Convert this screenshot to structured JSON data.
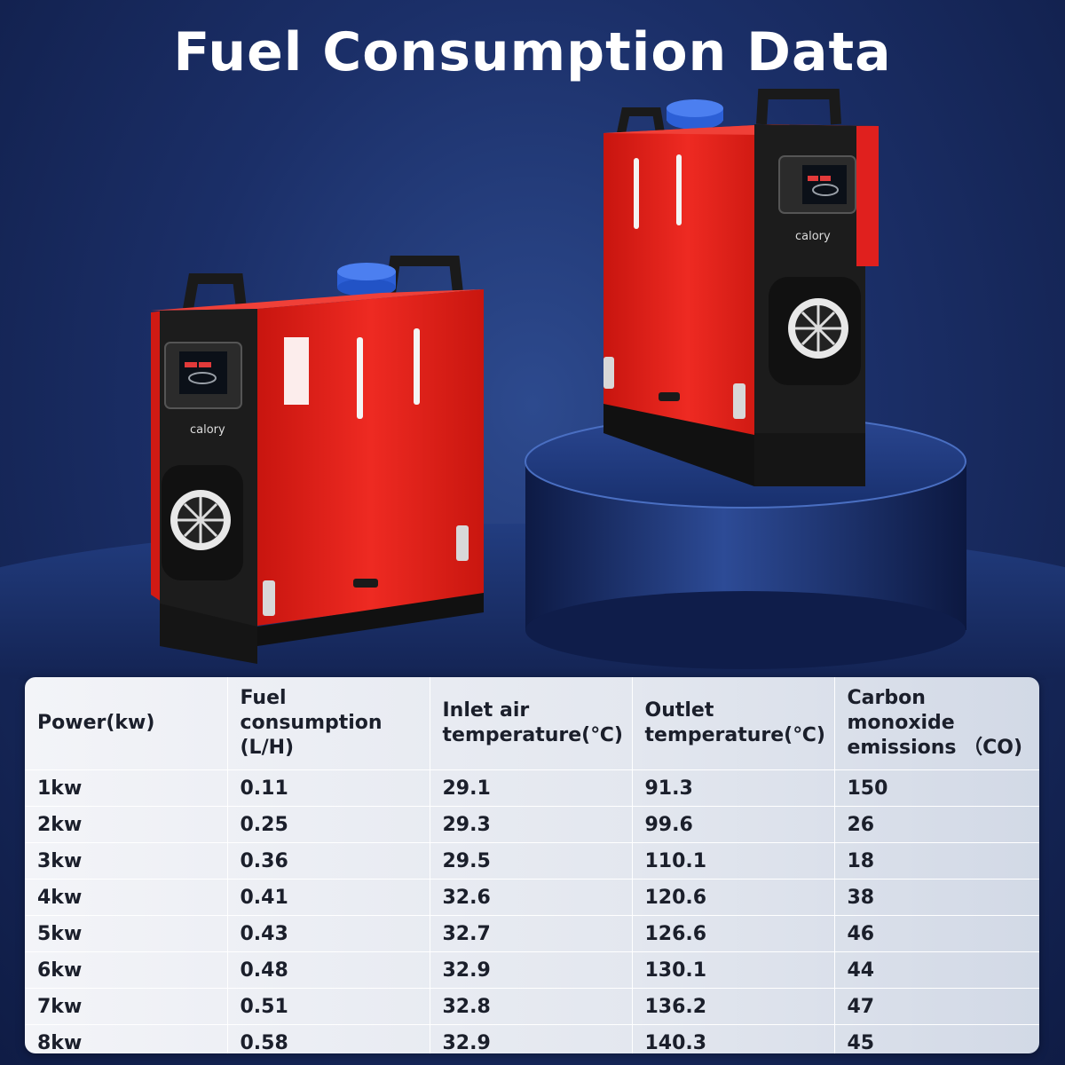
{
  "title": "Fuel Consumption Data",
  "brand": "calory",
  "colors": {
    "heater_red": "#e0201e",
    "lid_blue": "#2c5fd6",
    "background": "#1b2f68"
  },
  "table": {
    "headers": [
      "Power(kw)",
      "Fuel consumption (L/H)",
      "Inlet air temperature(℃)",
      "Outlet temperature(℃)",
      "Carbon monoxide emissions （CO)"
    ],
    "rows": [
      [
        "1kw",
        "0.11",
        "29.1",
        "91.3",
        "150"
      ],
      [
        "2kw",
        "0.25",
        "29.3",
        "99.6",
        "26"
      ],
      [
        "3kw",
        "0.36",
        "29.5",
        "110.1",
        "18"
      ],
      [
        "4kw",
        "0.41",
        "32.6",
        "120.6",
        "38"
      ],
      [
        "5kw",
        "0.43",
        "32.7",
        "126.6",
        "46"
      ],
      [
        "6kw",
        "0.48",
        "32.9",
        "130.1",
        "44"
      ],
      [
        "7kw",
        "0.51",
        "32.8",
        "136.2",
        "47"
      ],
      [
        "8kw",
        "0.58",
        "32.9",
        "140.3",
        "45"
      ]
    ]
  }
}
